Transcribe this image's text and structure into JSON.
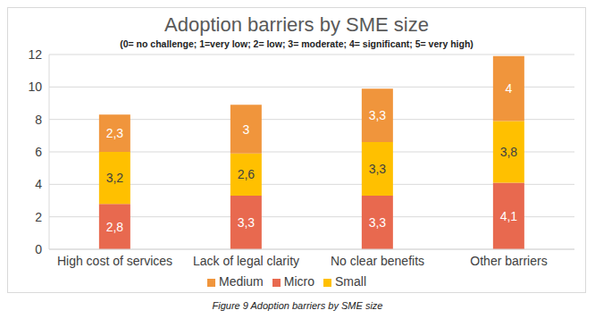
{
  "chart_data": {
    "type": "bar",
    "title": "Adoption barriers by SME size",
    "subtitle": "(0= no challenge; 1=very low; 2= low; 3= moderate; 4= significant; 5= very high)",
    "caption": "Figure 9 Adoption barriers by SME size",
    "categories": [
      "High cost of services",
      "Lack of legal clarity",
      "No clear benefits",
      "Other barriers"
    ],
    "series": [
      {
        "name": "Micro",
        "color": "#e8694f",
        "values": [
          2.8,
          3.3,
          3.3,
          4.1
        ],
        "value_labels": [
          "2,8",
          "3,3",
          "3,3",
          "4,1"
        ]
      },
      {
        "name": "Small",
        "color": "#ffc000",
        "values": [
          3.2,
          2.6,
          3.3,
          3.8
        ],
        "value_labels": [
          "3,2",
          "2,6",
          "3,3",
          "3,8"
        ]
      },
      {
        "name": "Medium",
        "color": "#f0953c",
        "values": [
          2.3,
          3,
          3.3,
          4
        ],
        "value_labels": [
          "2,3",
          "3",
          "3,3",
          "4"
        ]
      }
    ],
    "ylim": [
      0,
      12
    ],
    "yticks": [
      0,
      2,
      4,
      6,
      8,
      10,
      12
    ],
    "grid": true,
    "stacked": true,
    "data_labels": true,
    "legend": "bottom"
  }
}
